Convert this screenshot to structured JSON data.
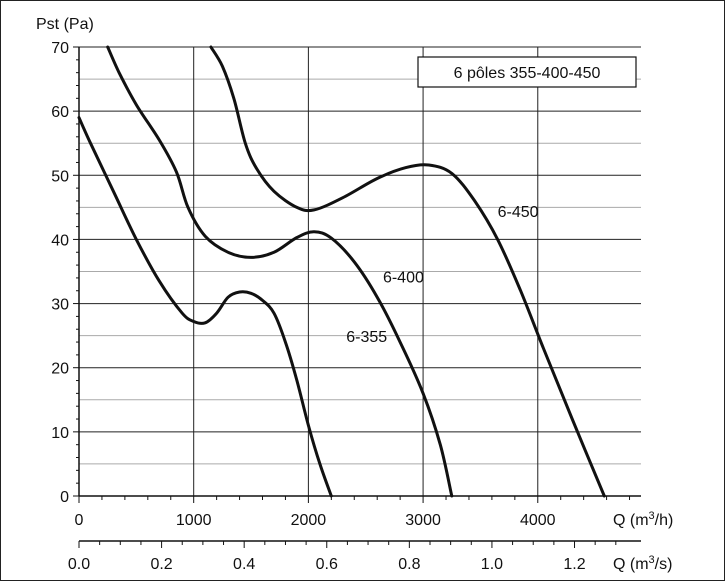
{
  "chart_data": {
    "type": "line",
    "legend_box": "6 pôles 355-400-450",
    "y_axis": {
      "label": "Pst (Pa)",
      "range": [
        0,
        70
      ],
      "ticks": [
        0,
        10,
        20,
        30,
        40,
        50,
        60,
        70
      ]
    },
    "x_axis": {
      "label_prefix": "Q (m",
      "label_sup": "3",
      "label_suffix": "/h)",
      "range": [
        0,
        4900
      ],
      "ticks": [
        0,
        1000,
        2000,
        3000,
        4000
      ]
    },
    "x2_axis": {
      "label_prefix": "Q (m",
      "label_sup": "3",
      "label_suffix": "/s)",
      "range": [
        0,
        1.361
      ],
      "tick_values": [
        0.0,
        0.2,
        0.4,
        0.6,
        0.8,
        1.0,
        1.2
      ],
      "tick_labels": [
        "0.0",
        "0.2",
        "0.4",
        "0.6",
        "0.8",
        "1.0",
        "1.2"
      ]
    },
    "grid": true,
    "series": [
      {
        "name": "6-355",
        "points": [
          [
            0,
            59
          ],
          [
            100,
            55
          ],
          [
            300,
            47.5
          ],
          [
            500,
            40
          ],
          [
            700,
            33.5
          ],
          [
            900,
            28.5
          ],
          [
            1000,
            27.2
          ],
          [
            1100,
            27
          ],
          [
            1200,
            28.5
          ],
          [
            1300,
            31
          ],
          [
            1400,
            31.8
          ],
          [
            1500,
            31.6
          ],
          [
            1600,
            30.5
          ],
          [
            1700,
            28.5
          ],
          [
            1800,
            24
          ],
          [
            1900,
            18
          ],
          [
            2000,
            11
          ],
          [
            2100,
            5
          ],
          [
            2200,
            0
          ]
        ]
      },
      {
        "name": "6-400",
        "points": [
          [
            250,
            70
          ],
          [
            350,
            66
          ],
          [
            500,
            61
          ],
          [
            700,
            55.5
          ],
          [
            850,
            50.5
          ],
          [
            950,
            45
          ],
          [
            1100,
            40.5
          ],
          [
            1300,
            38
          ],
          [
            1500,
            37.2
          ],
          [
            1700,
            38
          ],
          [
            1900,
            40.3
          ],
          [
            2050,
            41.2
          ],
          [
            2200,
            40.2
          ],
          [
            2400,
            36.5
          ],
          [
            2600,
            31
          ],
          [
            2800,
            24
          ],
          [
            3000,
            16
          ],
          [
            3150,
            8
          ],
          [
            3250,
            0
          ]
        ]
      },
      {
        "name": "6-450",
        "points": [
          [
            1150,
            70
          ],
          [
            1250,
            67
          ],
          [
            1350,
            62
          ],
          [
            1450,
            55
          ],
          [
            1550,
            51
          ],
          [
            1700,
            47.5
          ],
          [
            1900,
            45
          ],
          [
            2050,
            44.6
          ],
          [
            2300,
            46.5
          ],
          [
            2600,
            49.5
          ],
          [
            2850,
            51.2
          ],
          [
            3050,
            51.6
          ],
          [
            3250,
            50.3
          ],
          [
            3450,
            46
          ],
          [
            3650,
            40
          ],
          [
            3850,
            32
          ],
          [
            4050,
            23
          ],
          [
            4300,
            12
          ],
          [
            4580,
            0
          ]
        ]
      }
    ],
    "curve_labels": [
      {
        "text": "6-355",
        "x": 2330,
        "y": 24
      },
      {
        "text": "6-400",
        "x": 2650,
        "y": 33.3
      },
      {
        "text": "6-450",
        "x": 3650,
        "y": 43.5
      }
    ],
    "style": {
      "curve_color": "#111111",
      "grid_color": "#222222",
      "grid_minor_color": "#aaaaaa"
    }
  }
}
